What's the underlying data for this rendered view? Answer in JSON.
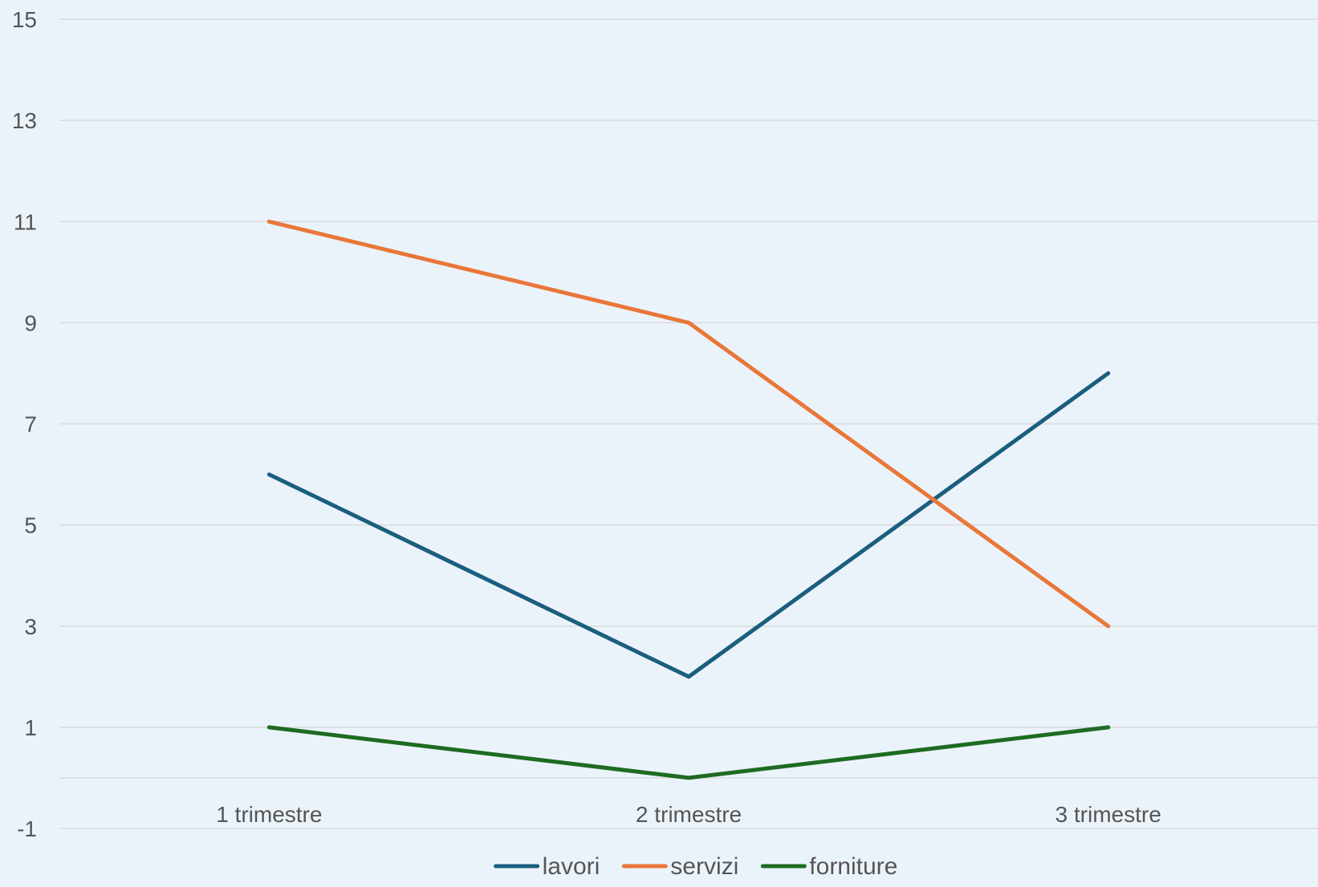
{
  "chart_data": {
    "type": "line",
    "categories": [
      "1 trimestre",
      "2 trimestre",
      "3 trimestre"
    ],
    "series": [
      {
        "name": "lavori",
        "values": [
          6,
          2,
          8
        ],
        "color": "#1b5e7e"
      },
      {
        "name": "servizi",
        "values": [
          11,
          9,
          3
        ],
        "color": "#e8773a"
      },
      {
        "name": "forniture",
        "values": [
          1,
          0,
          1
        ],
        "color": "#1e6b22"
      }
    ],
    "y_ticks": [
      "-1",
      "1",
      "3",
      "5",
      "7",
      "9",
      "11",
      "13",
      "15"
    ],
    "ylim": [
      -1,
      15
    ],
    "grid": true,
    "legend_position": "bottom",
    "background": "#ebf3fa",
    "grid_color": "#d9d9d9"
  }
}
